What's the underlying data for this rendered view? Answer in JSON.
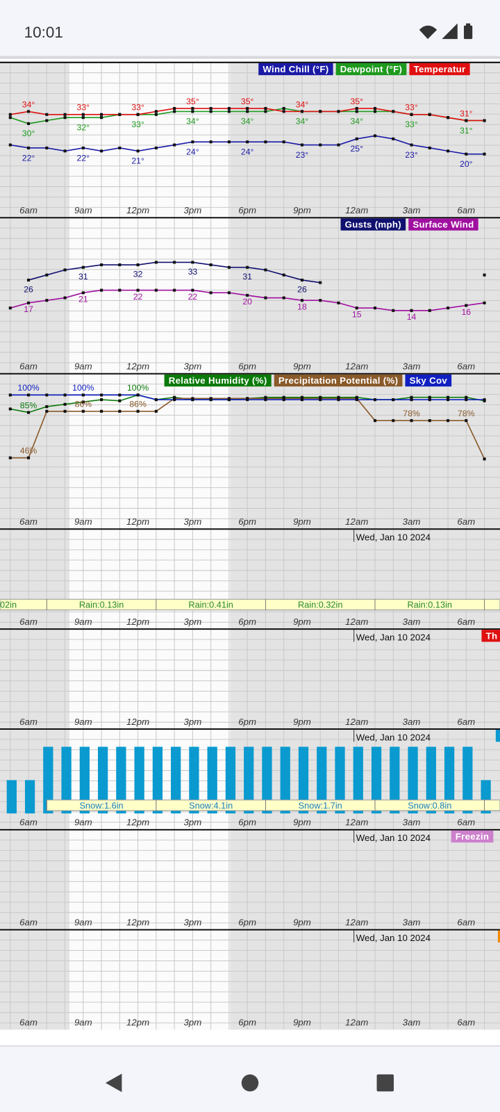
{
  "status_bar": {
    "time": "10:01"
  },
  "chart_data": [
    {
      "type": "line",
      "categories": [
        null,
        "6am",
        null,
        null,
        "9am",
        null,
        null,
        "12pm",
        null,
        null,
        "3pm",
        null,
        null,
        "6pm",
        null,
        null,
        "9pm",
        null,
        null,
        "12am",
        null,
        null,
        "3am",
        null,
        null,
        "6am",
        null
      ],
      "ylim": [
        0,
        45
      ],
      "series": [
        {
          "name": "Wind Chill (°F)",
          "color": "#1a1aa6",
          "values": [
            23,
            22,
            22,
            21,
            22,
            21,
            22,
            21,
            22,
            23,
            24,
            24,
            24,
            24,
            24,
            24,
            23,
            23,
            23,
            25,
            26,
            25,
            23,
            22,
            21,
            20,
            20
          ],
          "value_labels": [
            null,
            "22°",
            null,
            null,
            "22°",
            null,
            null,
            "21°",
            null,
            null,
            "24°",
            null,
            null,
            "24°",
            null,
            null,
            "23°",
            null,
            null,
            "25°",
            null,
            null,
            "23°",
            null,
            null,
            "20°",
            null
          ]
        },
        {
          "name": "Dewpoint (°F)",
          "color": "#1e9a1e",
          "values": [
            32,
            30,
            31,
            32,
            32,
            32,
            33,
            33,
            33,
            34,
            34,
            34,
            34,
            34,
            34,
            35,
            34,
            34,
            34,
            34,
            34,
            34,
            33,
            33,
            32,
            31,
            31
          ],
          "value_labels": [
            null,
            "30°",
            null,
            null,
            "32°",
            null,
            null,
            "33°",
            null,
            null,
            "34°",
            null,
            null,
            "34°",
            null,
            null,
            "34°",
            null,
            null,
            "34°",
            null,
            null,
            "33°",
            null,
            null,
            "31°",
            null
          ]
        },
        {
          "name": "Temperatur",
          "color": "#e01010",
          "values": [
            33,
            34,
            33,
            33,
            33,
            33,
            33,
            33,
            34,
            35,
            35,
            35,
            35,
            35,
            35,
            34,
            34,
            34,
            34,
            35,
            35,
            34,
            33,
            33,
            32,
            31,
            31
          ],
          "value_labels": [
            null,
            "34°",
            null,
            null,
            "33°",
            null,
            null,
            "33°",
            null,
            null,
            "35°",
            null,
            null,
            "35°",
            null,
            null,
            "34°",
            null,
            null,
            "35°",
            null,
            null,
            "33°",
            null,
            null,
            "31°",
            null
          ]
        }
      ]
    },
    {
      "type": "line",
      "categories": [
        null,
        "6am",
        null,
        null,
        "9am",
        null,
        null,
        "12pm",
        null,
        null,
        "3pm",
        null,
        null,
        "6pm",
        null,
        null,
        "9pm",
        null,
        null,
        "12am",
        null,
        null,
        "3am",
        null,
        null,
        "6am",
        null
      ],
      "ylim": [
        0,
        50
      ],
      "series": [
        {
          "name": "Gusts (mph)",
          "color": "#101070",
          "values": [
            null,
            26,
            28,
            30,
            31,
            32,
            32,
            32,
            33,
            33,
            33,
            32,
            31,
            31,
            30,
            28,
            26,
            25,
            null,
            null,
            null,
            null,
            null,
            null,
            null,
            null,
            28
          ]
        },
        {
          "name": "Surface Wind",
          "color": "#a010a0",
          "values": [
            15,
            17,
            18,
            19,
            21,
            22,
            22,
            22,
            22,
            22,
            22,
            21,
            21,
            20,
            19,
            19,
            18,
            18,
            17,
            15,
            15,
            14,
            14,
            14,
            15,
            16,
            17
          ]
        }
      ]
    },
    {
      "type": "line",
      "categories": [
        null,
        "6am",
        null,
        null,
        "9am",
        null,
        null,
        "12pm",
        null,
        null,
        "3pm",
        null,
        null,
        "6pm",
        null,
        null,
        "9pm",
        null,
        null,
        "12am",
        null,
        null,
        "3am",
        null,
        null,
        "6am",
        null
      ],
      "ylim": [
        0,
        100
      ],
      "series": [
        {
          "name": "Relative Humidity (%)",
          "color": "#0a7a0a",
          "values": [
            88,
            85,
            90,
            92,
            94,
            96,
            95,
            100,
            96,
            98,
            96,
            96,
            96,
            97,
            98,
            98,
            98,
            98,
            98,
            98,
            96,
            96,
            98,
            98,
            98,
            98,
            95
          ],
          "value_labels": [
            null,
            "85%",
            null,
            null,
            null,
            null,
            null,
            "100%",
            null,
            null,
            null,
            null,
            null,
            null,
            null,
            null,
            null,
            null,
            null,
            null,
            null,
            null,
            null,
            null,
            null,
            null,
            null
          ]
        },
        {
          "name": "Precipitation Potential (%)",
          "color": "#8a5a2a",
          "values": [
            46,
            46,
            86,
            86,
            86,
            86,
            86,
            86,
            86,
            97,
            97,
            97,
            97,
            97,
            97,
            97,
            97,
            97,
            97,
            97,
            78,
            78,
            78,
            78,
            78,
            78,
            45
          ],
          "value_labels": [
            null,
            "46%",
            null,
            null,
            "86%",
            null,
            null,
            "86%",
            null,
            null,
            null,
            null,
            null,
            null,
            null,
            null,
            null,
            null,
            null,
            null,
            null,
            null,
            "78%",
            null,
            null,
            "78%",
            null
          ]
        },
        {
          "name": "Sky Cov",
          "color": "#1020c0",
          "values": [
            100,
            100,
            100,
            100,
            100,
            100,
            100,
            100,
            96,
            96,
            96,
            96,
            96,
            96,
            96,
            96,
            96,
            96,
            96,
            96,
            96,
            96,
            96,
            96,
            96,
            96,
            96
          ],
          "value_labels": [
            null,
            "100%",
            null,
            null,
            "100%",
            null,
            null,
            null,
            null,
            null,
            null,
            null,
            null,
            null,
            null,
            null,
            null,
            null,
            null,
            null,
            null,
            null,
            null,
            null,
            null,
            null,
            null
          ]
        }
      ]
    },
    {
      "type": "annotation",
      "categories": [
        null,
        "6am",
        null,
        null,
        "9am",
        null,
        null,
        "12pm",
        null,
        null,
        "3pm",
        null,
        null,
        "6pm",
        null,
        null,
        "9pm",
        null,
        null,
        "12am",
        null,
        null,
        "3am",
        null,
        null,
        "6am",
        null
      ],
      "date": "Wed, Jan 10 2024",
      "strip_labels": [
        "02in",
        "Rain:0.13in",
        "Rain:0.41in",
        "Rain:0.32in",
        "Rain:0.13in"
      ]
    },
    {
      "type": "annotation",
      "categories": [
        null,
        "6am",
        null,
        null,
        "9am",
        null,
        null,
        "12pm",
        null,
        null,
        "3pm",
        null,
        null,
        "6pm",
        null,
        null,
        "9pm",
        null,
        null,
        "12am",
        null,
        null,
        "3am",
        null,
        null,
        "6am",
        null
      ],
      "date": "Wed, Jan 10 2024",
      "legend": [
        {
          "name": "Th",
          "color": "#e01010"
        }
      ]
    },
    {
      "type": "bar",
      "categories": [
        null,
        "6am",
        null,
        null,
        "9am",
        null,
        null,
        "12pm",
        null,
        null,
        "3pm",
        null,
        null,
        "6pm",
        null,
        null,
        "9pm",
        null,
        null,
        "12am",
        null,
        null,
        "3am",
        null,
        null,
        "6am",
        null
      ],
      "date": "Wed, Jan 10 2024",
      "ylim": [
        0,
        0.2
      ],
      "color": "#0a9ad0",
      "values": [
        0.1,
        0.1,
        0.2,
        0.2,
        0.2,
        0.2,
        0.2,
        0.2,
        0.2,
        0.2,
        0.2,
        0.2,
        0.2,
        0.2,
        0.2,
        0.2,
        0.2,
        0.2,
        0.2,
        0.2,
        0.2,
        0.2,
        0.2,
        0.2,
        0.2,
        0.2,
        0.1
      ],
      "legend": [
        {
          "color": "#0a9ad0"
        }
      ],
      "strip_labels": [
        "Snow:1.6in",
        "Snow:4.1in",
        "Snow:1.7in",
        "Snow:0.8in"
      ]
    },
    {
      "type": "annotation",
      "categories": [
        null,
        "6am",
        null,
        null,
        "9am",
        null,
        null,
        "12pm",
        null,
        null,
        "3pm",
        null,
        null,
        "6pm",
        null,
        null,
        "9pm",
        null,
        null,
        "12am",
        null,
        null,
        "3am",
        null,
        null,
        "6am",
        null
      ],
      "date": "Wed, Jan 10 2024",
      "legend": [
        {
          "name": "Freezin",
          "color": "#cc80cc"
        }
      ]
    },
    {
      "type": "annotation",
      "categories": [
        null,
        "6am",
        null,
        null,
        "9am",
        null,
        null,
        "12pm",
        null,
        null,
        "3pm",
        null,
        null,
        "6pm",
        null,
        null,
        "9pm",
        null,
        null,
        "12am",
        null,
        null,
        "3am",
        null,
        null,
        "6am",
        null
      ],
      "date": "Wed, Jan 10 2024",
      "legend": [
        {
          "color": "#f08a00"
        }
      ]
    }
  ]
}
